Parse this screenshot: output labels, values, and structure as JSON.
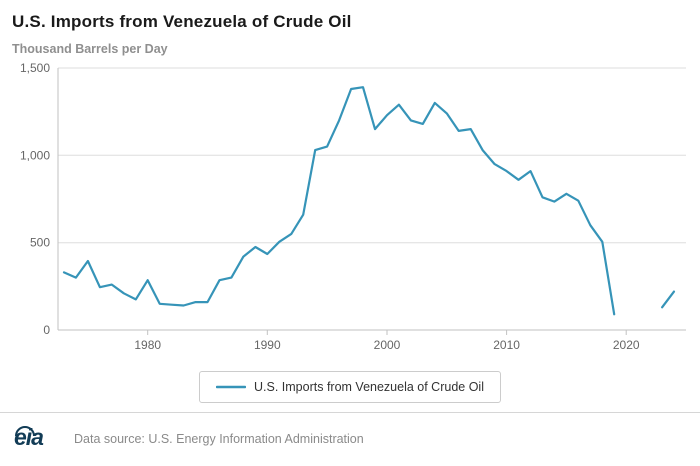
{
  "header": {
    "title": "U.S. Imports from Venezuela of Crude Oil",
    "subtitle": "Thousand Barrels per Day"
  },
  "chart_data": {
    "type": "line",
    "title": "U.S. Imports from Venezuela of Crude Oil",
    "xlabel": "",
    "ylabel": "Thousand Barrels per Day",
    "x": [
      1973,
      1974,
      1975,
      1976,
      1977,
      1978,
      1979,
      1980,
      1981,
      1982,
      1983,
      1984,
      1985,
      1986,
      1987,
      1988,
      1989,
      1990,
      1991,
      1992,
      1993,
      1994,
      1995,
      1996,
      1997,
      1998,
      1999,
      2000,
      2001,
      2002,
      2003,
      2004,
      2005,
      2006,
      2007,
      2008,
      2009,
      2010,
      2011,
      2012,
      2013,
      2014,
      2015,
      2016,
      2017,
      2018,
      2019,
      2020,
      2021,
      2022,
      2023,
      2024
    ],
    "series": [
      {
        "name": "U.S. Imports from Venezuela of Crude Oil",
        "values": [
          330,
          300,
          395,
          245,
          260,
          210,
          175,
          285,
          150,
          145,
          140,
          160,
          160,
          285,
          300,
          420,
          475,
          435,
          505,
          550,
          660,
          1030,
          1050,
          1200,
          1380,
          1390,
          1150,
          1230,
          1290,
          1200,
          1180,
          1300,
          1240,
          1140,
          1150,
          1030,
          950,
          910,
          860,
          910,
          760,
          735,
          780,
          740,
          600,
          505,
          90,
          null,
          null,
          null,
          130,
          220
        ]
      }
    ],
    "ylim": [
      0,
      1500
    ],
    "x_range": [
      1972.5,
      2025
    ],
    "x_ticks": [
      1980,
      1990,
      2000,
      2010,
      2020
    ],
    "y_ticks": [
      {
        "value": 0,
        "label": "0"
      },
      {
        "value": 500,
        "label": "500"
      },
      {
        "value": 1000,
        "label": "1,000"
      },
      {
        "value": 1500,
        "label": "1,500"
      }
    ],
    "grid": true,
    "legend_position": "bottom",
    "line_color": "#3694b8"
  },
  "legend": {
    "label": "U.S. Imports from Venezuela of Crude Oil"
  },
  "footer": {
    "logo_text": "eia",
    "source": "Data source: U.S. Energy Information Administration"
  }
}
